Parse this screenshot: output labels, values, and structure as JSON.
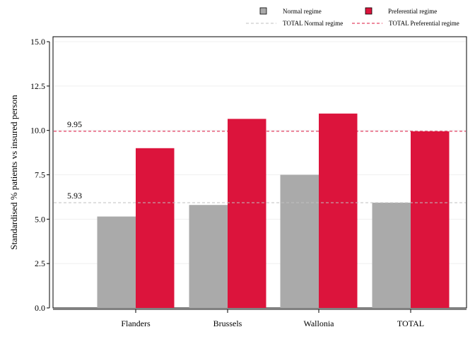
{
  "chart_data": {
    "type": "bar",
    "categories": [
      "Flanders",
      "Brussels",
      "Wallonia",
      "TOTAL"
    ],
    "series": [
      {
        "name": "Normal regime",
        "color": "#aaaaaa",
        "values": [
          5.15,
          5.8,
          7.5,
          5.93
        ]
      },
      {
        "name": "Preferential regime",
        "color": "#dc143c",
        "values": [
          9.0,
          10.65,
          10.95,
          9.95
        ]
      }
    ],
    "reference_lines": [
      {
        "name": "TOTAL Normal regime",
        "value": 5.93,
        "label": "5.93",
        "color": "#c0c0c0",
        "style": "dashed"
      },
      {
        "name": "TOTAL Preferential regime",
        "value": 9.95,
        "label": "9.95",
        "color": "#dc143c",
        "style": "dashed"
      }
    ],
    "title": "",
    "xlabel": "",
    "ylabel": "Standardised % patients vs insured person",
    "ylim": [
      0,
      15
    ],
    "yticks": [
      "0.0",
      "2.5",
      "5.0",
      "7.5",
      "10.0",
      "12.5",
      "15.0"
    ],
    "grid": "horizontal",
    "legend_position": "top-right"
  }
}
